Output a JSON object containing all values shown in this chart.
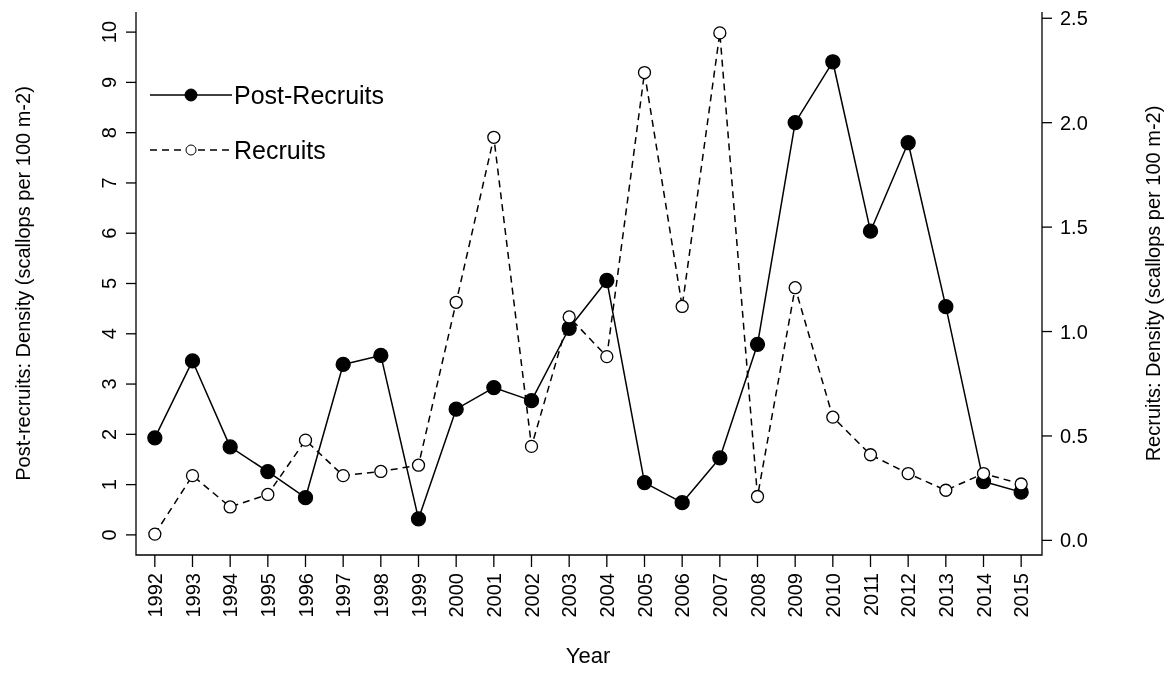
{
  "chart_data": {
    "type": "line",
    "xlabel": "Year",
    "ylabel": "Post-recruits: Density (scallops per 100 m-2)",
    "y2label": "Recruits: Density (scallops per 100 m-2)",
    "categories": [
      "1992",
      "1993",
      "1994",
      "1995",
      "1996",
      "1997",
      "1998",
      "1999",
      "2000",
      "2001",
      "2002",
      "2003",
      "2004",
      "2005",
      "2006",
      "2007",
      "2008",
      "2009",
      "2010",
      "2011",
      "2012",
      "2013",
      "2014",
      "2015"
    ],
    "series": [
      {
        "name": "Post-Recruits",
        "color": "#000000",
        "line_style": "solid",
        "marker": "circle",
        "values": [
          1.93,
          3.46,
          1.75,
          1.26,
          0.74,
          3.39,
          3.57,
          0.32,
          2.5,
          2.93,
          2.67,
          4.11,
          5.06,
          1.04,
          0.64,
          1.53,
          3.79,
          8.2,
          9.41,
          6.04,
          7.8,
          4.54,
          1.06,
          0.85
        ]
      },
      {
        "name": "Recruits",
        "color": "#000000",
        "line_style": "dashed",
        "marker": "circle",
        "axis": "y2",
        "values": [
          0.03,
          0.31,
          0.16,
          0.22,
          0.48,
          0.31,
          0.33,
          0.36,
          1.14,
          1.93,
          0.45,
          1.07,
          0.88,
          2.24,
          1.12,
          2.43,
          0.21,
          1.21,
          0.59,
          0.41,
          0.32,
          0.24,
          0.32,
          0.27
        ]
      }
    ],
    "ylim": [
      -0.4,
      10.4
    ],
    "yticks": [
      0,
      1,
      2,
      3,
      4,
      5,
      6,
      7,
      8,
      9,
      10
    ],
    "y2lim": [
      -0.07,
      2.53
    ],
    "y2ticks": [
      {
        "value": 0,
        "label": "0.0"
      },
      {
        "value": 0.5,
        "label": "0.5"
      },
      {
        "value": 1,
        "label": "1.0"
      },
      {
        "value": 1.5,
        "label": "1.5"
      },
      {
        "value": 2,
        "label": "2.0"
      },
      {
        "value": 2.5,
        "label": "2.5"
      }
    ],
    "legend": "top left",
    "grid": false
  }
}
